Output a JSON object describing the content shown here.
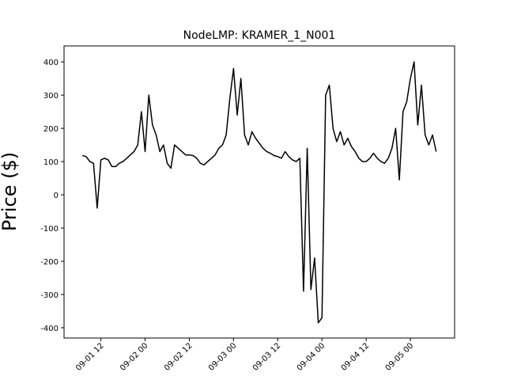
{
  "chart_data": {
    "type": "line",
    "title": "NodeLMP: KRAMER_1_N001",
    "ylabel": "Price ($)",
    "x": [
      "09-01 07",
      "09-01 08",
      "09-01 09",
      "09-01 10",
      "09-01 11",
      "09-01 12",
      "09-01 13",
      "09-01 14",
      "09-01 15",
      "09-01 16",
      "09-01 17",
      "09-01 18",
      "09-01 19",
      "09-01 20",
      "09-01 21",
      "09-01 22",
      "09-01 23",
      "09-02 00",
      "09-02 01",
      "09-02 02",
      "09-02 03",
      "09-02 04",
      "09-02 05",
      "09-02 06",
      "09-02 07",
      "09-02 08",
      "09-02 09",
      "09-02 10",
      "09-02 11",
      "09-02 12",
      "09-02 13",
      "09-02 14",
      "09-02 15",
      "09-02 16",
      "09-02 17",
      "09-02 18",
      "09-02 19",
      "09-02 20",
      "09-02 21",
      "09-02 22",
      "09-02 23",
      "09-03 00",
      "09-03 01",
      "09-03 02",
      "09-03 03",
      "09-03 04",
      "09-03 05",
      "09-03 06",
      "09-03 07",
      "09-03 08",
      "09-03 09",
      "09-03 10",
      "09-03 11",
      "09-03 12",
      "09-03 13",
      "09-03 14",
      "09-03 15",
      "09-03 16",
      "09-03 17",
      "09-03 18",
      "09-03 19",
      "09-03 20",
      "09-03 21",
      "09-03 22",
      "09-03 23",
      "09-04 00",
      "09-04 01",
      "09-04 02",
      "09-04 03",
      "09-04 04",
      "09-04 05",
      "09-04 06",
      "09-04 07",
      "09-04 08",
      "09-04 09",
      "09-04 10",
      "09-04 11",
      "09-04 12",
      "09-04 13",
      "09-04 14",
      "09-04 15",
      "09-04 16",
      "09-04 17",
      "09-04 18",
      "09-04 19",
      "09-04 20",
      "09-04 21",
      "09-04 22",
      "09-04 23",
      "09-05 00",
      "09-05 01",
      "09-05 02",
      "09-05 03",
      "09-05 04",
      "09-05 05",
      "09-05 06",
      "09-05 07"
    ],
    "series": [
      {
        "color": "#000000",
        "values": [
          118,
          115,
          100,
          95,
          -40,
          105,
          110,
          105,
          85,
          85,
          95,
          100,
          110,
          120,
          130,
          150,
          250,
          130,
          300,
          210,
          180,
          130,
          150,
          95,
          80,
          150,
          140,
          130,
          120,
          120,
          118,
          110,
          95,
          90,
          100,
          110,
          120,
          140,
          150,
          180,
          290,
          380,
          240,
          350,
          180,
          150,
          190,
          170,
          155,
          140,
          130,
          125,
          118,
          115,
          110,
          130,
          115,
          105,
          100,
          110,
          -290,
          140,
          -285,
          -190,
          -385,
          -370,
          300,
          330,
          200,
          160,
          190,
          150,
          170,
          145,
          130,
          110,
          100,
          100,
          110,
          125,
          110,
          100,
          95,
          110,
          140,
          200,
          45,
          250,
          280,
          350,
          400,
          210,
          330,
          180,
          150,
          180,
          130
        ]
      }
    ],
    "xlim": [
      "09-01 02",
      "09-05 12"
    ],
    "xticks": [
      "09-01 12",
      "09-02 00",
      "09-02 12",
      "09-03 00",
      "09-03 12",
      "09-04 00",
      "09-04 12",
      "09-05 00"
    ],
    "ylim": [
      -431,
      448
    ],
    "yticks": [
      -400,
      -300,
      -200,
      -100,
      0,
      100,
      200,
      300,
      400
    ]
  }
}
